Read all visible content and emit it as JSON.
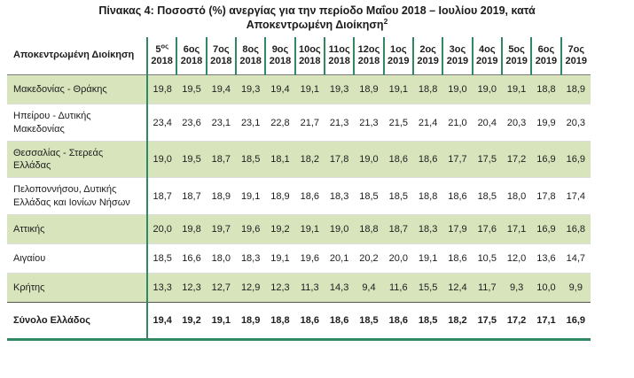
{
  "title": {
    "line1": "Πίνακας 4: Ποσοστό (%) ανεργίας για την περίοδο Μαΐου 2018 – Ιουλίου 2019, κατά",
    "line2": "Αποκεντρωμένη Διοίκηση",
    "superscript": "2"
  },
  "colors": {
    "row_shade": "#d8e4bc",
    "green_line": "#2f8a63"
  },
  "table": {
    "corner_header": "Αποκεντρωμένη Διοίκηση",
    "columns": [
      {
        "label": "5",
        "suffix": "ος",
        "suffix_superscript": true,
        "year": "2018"
      },
      {
        "label": "6ος",
        "year": "2018"
      },
      {
        "label": "7ος",
        "year": "2018"
      },
      {
        "label": "8ος",
        "year": "2018"
      },
      {
        "label": "9ος",
        "year": "2018"
      },
      {
        "label": "10ος",
        "year": "2018"
      },
      {
        "label": "11ος",
        "year": "2018"
      },
      {
        "label": "12ος",
        "year": "2018"
      },
      {
        "label": "1ος",
        "year": "2019"
      },
      {
        "label": "2ος",
        "year": "2019"
      },
      {
        "label": "3ος",
        "year": "2019"
      },
      {
        "label": "4ος",
        "year": "2019"
      },
      {
        "label": "5ος",
        "year": "2019"
      },
      {
        "label": "6ος",
        "year": "2019"
      },
      {
        "label": "7ος",
        "year": "2019"
      }
    ],
    "rows": [
      {
        "label": "Μακεδονίας - Θράκης",
        "shaded": true,
        "total": false,
        "values": [
          "19,8",
          "19,5",
          "19,4",
          "19,3",
          "19,4",
          "19,1",
          "19,3",
          "18,9",
          "19,1",
          "18,8",
          "19,0",
          "19,0",
          "19,1",
          "18,8",
          "18,9"
        ]
      },
      {
        "label": "Ηπείρου - Δυτικής Μακεδονίας",
        "shaded": false,
        "total": false,
        "values": [
          "23,4",
          "23,6",
          "23,1",
          "23,1",
          "22,8",
          "21,7",
          "21,3",
          "21,3",
          "21,5",
          "21,4",
          "21,0",
          "20,4",
          "20,3",
          "19,9",
          "20,3"
        ]
      },
      {
        "label": "Θεσσαλίας - Στερεάς Ελλάδας",
        "shaded": true,
        "total": false,
        "values": [
          "19,0",
          "19,5",
          "18,7",
          "18,5",
          "18,1",
          "18,2",
          "17,8",
          "19,0",
          "18,6",
          "18,6",
          "17,7",
          "17,5",
          "17,2",
          "16,9",
          "16,9"
        ]
      },
      {
        "label": "Πελοποννήσου, Δυτικής Ελλάδας και Ιονίων Νήσων",
        "shaded": false,
        "total": false,
        "values": [
          "18,7",
          "18,7",
          "18,9",
          "19,1",
          "18,9",
          "18,6",
          "18,3",
          "18,5",
          "18,5",
          "18,8",
          "18,6",
          "18,5",
          "18,0",
          "17,8",
          "17,4"
        ]
      },
      {
        "label": "Αττικής",
        "shaded": true,
        "total": false,
        "values": [
          "20,0",
          "19,8",
          "19,7",
          "19,6",
          "19,2",
          "19,1",
          "19,0",
          "18,8",
          "18,7",
          "18,3",
          "17,9",
          "17,6",
          "17,1",
          "16,9",
          "16,8"
        ]
      },
      {
        "label": "Αιγαίου",
        "shaded": false,
        "total": false,
        "values": [
          "18,5",
          "16,6",
          "18,0",
          "18,3",
          "19,1",
          "19,6",
          "20,1",
          "20,2",
          "20,0",
          "19,1",
          "18,6",
          "10,5",
          "12,0",
          "13,6",
          "14,7"
        ]
      },
      {
        "label": "Κρήτης",
        "shaded": true,
        "total": false,
        "values": [
          "13,3",
          "12,3",
          "12,7",
          "12,9",
          "12,3",
          "11,3",
          "14,3",
          "9,4",
          "11,6",
          "15,5",
          "12,4",
          "11,7",
          "9,3",
          "10,0",
          "9,9"
        ]
      },
      {
        "label": "Σύνολο Ελλάδος",
        "shaded": false,
        "total": true,
        "values": [
          "19,4",
          "19,2",
          "19,1",
          "18,9",
          "18,8",
          "18,6",
          "18,6",
          "18,5",
          "18,6",
          "18,5",
          "18,2",
          "17,5",
          "17,2",
          "17,1",
          "16,9"
        ]
      }
    ]
  }
}
